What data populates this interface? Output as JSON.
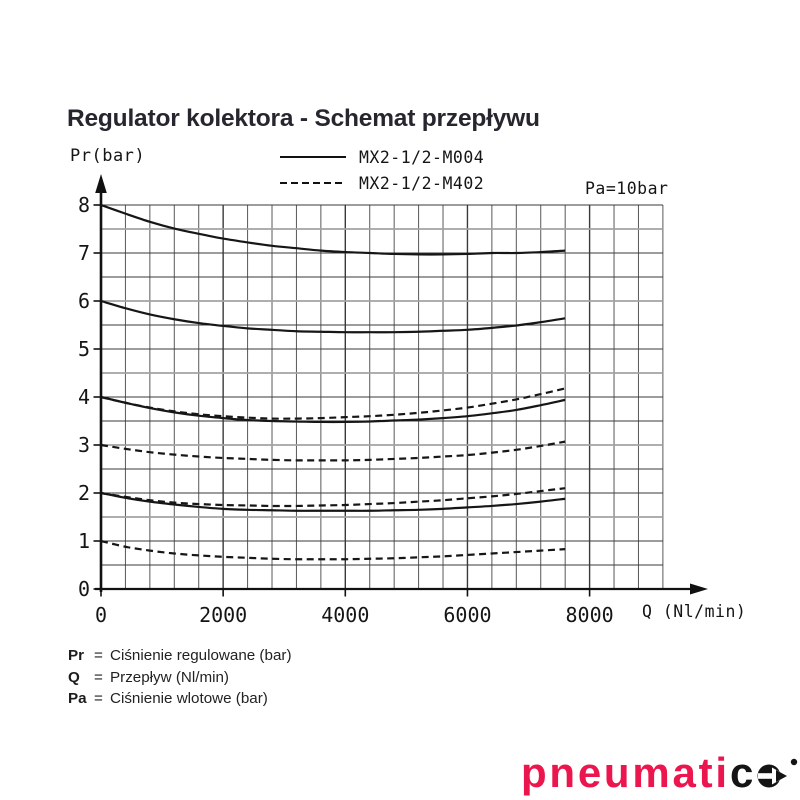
{
  "title": "Regulator kolektora - Schemat przepływu",
  "legend": {
    "items": [
      {
        "label": "MX2-1/2-M004",
        "style": "solid"
      },
      {
        "label": "MX2-1/2-M402",
        "style": "dashed"
      }
    ]
  },
  "annotation": "Pa=10bar",
  "axes": {
    "y_label": "Pr(bar)",
    "x_label": "Q (Nl/min)"
  },
  "definitions": {
    "equals": "=",
    "rows": [
      {
        "term": "Pr",
        "desc": "Ciśnienie regulowane (bar)"
      },
      {
        "term": "Q",
        "desc": "Przepływ (Nl/min)"
      },
      {
        "term": "Pa",
        "desc": "Ciśnienie wlotowe (bar)"
      }
    ]
  },
  "logo": {
    "text_primary": "pneumati",
    "text_secondary": "c",
    "primary_color": "#ec164f",
    "dark_color": "#141414"
  },
  "chart_data": {
    "type": "line",
    "title": "Regulator kolektora - Schemat przepływu",
    "xlabel": "Q (Nl/min)",
    "ylabel": "Pr(bar)",
    "annotation": "Pa=10bar",
    "xlim": [
      0,
      9200
    ],
    "ylim": [
      0,
      8
    ],
    "x_ticks": [
      0,
      2000,
      4000,
      6000,
      8000
    ],
    "y_ticks": [
      0,
      1,
      2,
      3,
      4,
      5,
      6,
      7,
      8
    ],
    "grid": {
      "on": true,
      "x_minor_step": 400,
      "y_minor_step": 0.5
    },
    "legend_position": "top",
    "x": [
      0,
      400,
      800,
      1200,
      1600,
      2000,
      2400,
      2800,
      3200,
      3600,
      4000,
      4400,
      4800,
      5200,
      5600,
      6000,
      6400,
      6800,
      7200,
      7600
    ],
    "series": [
      {
        "name": "MX2-1/2-M004",
        "style": "solid",
        "pr_set": 8,
        "values": [
          8.0,
          7.82,
          7.65,
          7.51,
          7.4,
          7.3,
          7.22,
          7.15,
          7.1,
          7.05,
          7.02,
          7.0,
          6.98,
          6.97,
          6.97,
          6.98,
          7.0,
          7.0,
          7.02,
          7.05
        ]
      },
      {
        "name": "MX2-1/2-M004",
        "style": "solid",
        "pr_set": 6,
        "values": [
          6.0,
          5.85,
          5.72,
          5.62,
          5.54,
          5.48,
          5.43,
          5.4,
          5.37,
          5.36,
          5.35,
          5.35,
          5.35,
          5.36,
          5.38,
          5.4,
          5.44,
          5.49,
          5.56,
          5.64
        ]
      },
      {
        "name": "MX2-1/2-M004",
        "style": "solid",
        "pr_set": 4,
        "values": [
          4.0,
          3.88,
          3.77,
          3.68,
          3.61,
          3.56,
          3.52,
          3.5,
          3.49,
          3.48,
          3.48,
          3.49,
          3.51,
          3.53,
          3.56,
          3.6,
          3.66,
          3.73,
          3.83,
          3.94
        ]
      },
      {
        "name": "MX2-1/2-M402",
        "style": "dashed",
        "pr_set": 4,
        "values": [
          4.0,
          3.88,
          3.78,
          3.7,
          3.64,
          3.6,
          3.57,
          3.55,
          3.55,
          3.56,
          3.58,
          3.6,
          3.63,
          3.67,
          3.72,
          3.78,
          3.86,
          3.95,
          4.06,
          4.18
        ]
      },
      {
        "name": "MX2-1/2-M402",
        "style": "dashed",
        "pr_set": 3,
        "values": [
          3.0,
          2.92,
          2.85,
          2.8,
          2.76,
          2.73,
          2.71,
          2.69,
          2.68,
          2.68,
          2.68,
          2.69,
          2.71,
          2.73,
          2.76,
          2.79,
          2.84,
          2.9,
          2.98,
          3.07
        ]
      },
      {
        "name": "MX2-1/2-M004",
        "style": "solid",
        "pr_set": 2,
        "values": [
          2.0,
          1.9,
          1.82,
          1.76,
          1.71,
          1.67,
          1.65,
          1.64,
          1.63,
          1.63,
          1.63,
          1.63,
          1.64,
          1.65,
          1.67,
          1.7,
          1.73,
          1.77,
          1.82,
          1.88
        ]
      },
      {
        "name": "MX2-1/2-M402",
        "style": "dashed",
        "pr_set": 2,
        "values": [
          2.0,
          1.92,
          1.85,
          1.8,
          1.77,
          1.75,
          1.74,
          1.73,
          1.73,
          1.74,
          1.75,
          1.77,
          1.79,
          1.82,
          1.85,
          1.89,
          1.93,
          1.98,
          2.04,
          2.1
        ]
      },
      {
        "name": "MX2-1/2-M402",
        "style": "dashed",
        "pr_set": 1,
        "values": [
          1.0,
          0.88,
          0.8,
          0.74,
          0.7,
          0.67,
          0.65,
          0.63,
          0.62,
          0.62,
          0.62,
          0.63,
          0.64,
          0.66,
          0.68,
          0.71,
          0.74,
          0.77,
          0.8,
          0.83
        ]
      }
    ]
  }
}
